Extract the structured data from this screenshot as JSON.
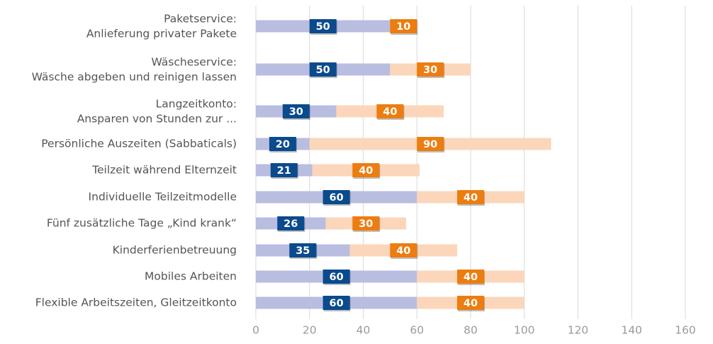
{
  "chart_data": {
    "type": "stacked-barh",
    "categories": [
      "Paketservice:\nAnlieferung privater Pakete",
      "Wäscheservice:\nWäsche abgeben und reinigen lassen",
      "Langzeitkonto:\nAnsparen von Stunden zur ...",
      "Persönliche Auszeiten (Sabbaticals)",
      "Teilzeit während Elternzeit",
      "Individuelle Teilzeitmodelle",
      "Fünf zusätzliche Tage „Kind krank“",
      "Kinderferienbetreuung",
      "Mobiles Arbeiten",
      "Flexible Arbeitszeiten, Gleitzeitkonto"
    ],
    "series": [
      {
        "color": "#b9bde0",
        "label_color": "#0b4a8c",
        "values": [
          50,
          50,
          30,
          20,
          21,
          60,
          26,
          35,
          60,
          60
        ]
      },
      {
        "color": "#fbd6ba",
        "label_color": "#ec7d10",
        "values": [
          10,
          30,
          40,
          90,
          40,
          40,
          30,
          40,
          40,
          40
        ]
      }
    ],
    "xlim": [
      0,
      160
    ],
    "xticks": [
      0,
      20,
      40,
      60,
      80,
      100,
      120,
      140,
      160
    ],
    "grid": true
  }
}
